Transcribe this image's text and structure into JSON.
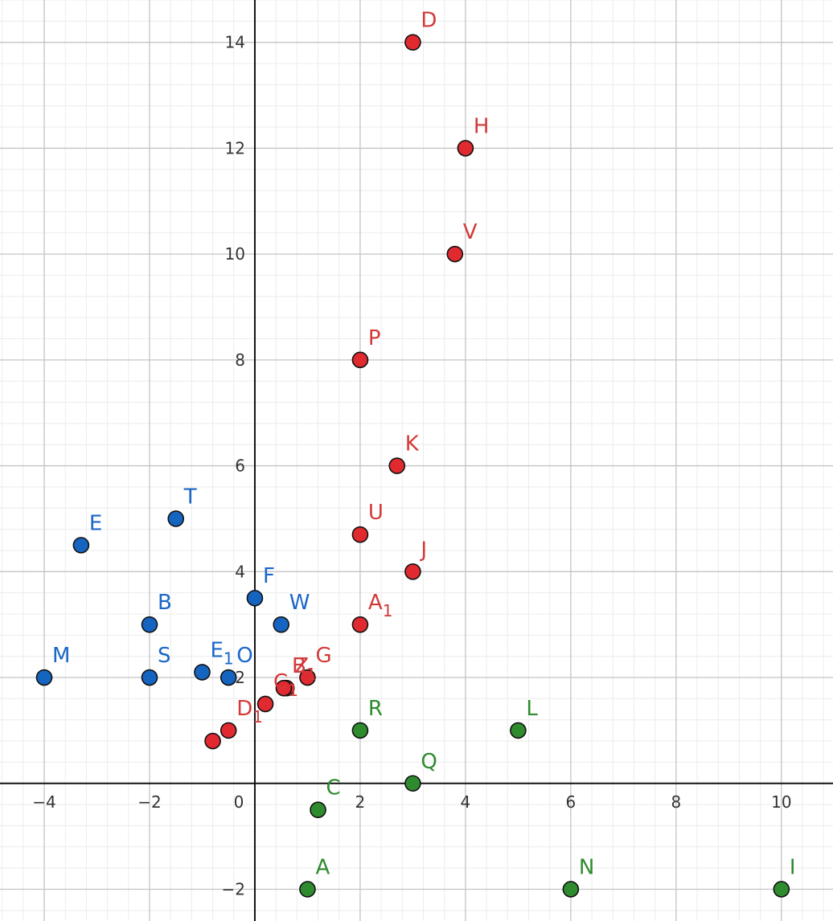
{
  "chart_data": {
    "type": "scatter",
    "title": "",
    "xlabel": "",
    "ylabel": "",
    "xlim": [
      -4.84,
      10.98
    ],
    "ylim": [
      -2.6,
      14.8
    ],
    "grid": true,
    "x_ticks": [
      -4,
      -2,
      0,
      2,
      4,
      6,
      8,
      10
    ],
    "x_tick_labels": [
      "−4",
      "−2",
      "0",
      "2",
      "4",
      "6",
      "8",
      "10"
    ],
    "y_ticks": [
      -2,
      2,
      4,
      6,
      8,
      10,
      12,
      14
    ],
    "y_tick_labels": [
      "−2",
      "2",
      "4",
      "6",
      "8",
      "10",
      "12",
      "14"
    ],
    "series": [
      {
        "name": "red",
        "color": "#e02a2f",
        "text_color": "#d23a3a",
        "points": [
          {
            "label": "D",
            "sub": "",
            "x": 3,
            "y": 14
          },
          {
            "label": "H",
            "sub": "",
            "x": 4,
            "y": 12
          },
          {
            "label": "V",
            "sub": "",
            "x": 3.8,
            "y": 10
          },
          {
            "label": "P",
            "sub": "",
            "x": 2,
            "y": 8
          },
          {
            "label": "K",
            "sub": "",
            "x": 2.7,
            "y": 6
          },
          {
            "label": "U",
            "sub": "",
            "x": 2,
            "y": 4.7
          },
          {
            "label": "J",
            "sub": "",
            "x": 3,
            "y": 4
          },
          {
            "label": "A",
            "sub": "1",
            "x": 2,
            "y": 3
          },
          {
            "label": "G",
            "sub": "",
            "x": 1,
            "y": 2
          },
          {
            "label": "Z",
            "sub": "",
            "x": 0.6,
            "y": 1.8
          },
          {
            "label": "B",
            "sub": "1",
            "x": 0.55,
            "y": 1.8
          },
          {
            "label": "C",
            "sub": "1",
            "x": 0.2,
            "y": 1.5
          },
          {
            "label": "D",
            "sub": "1",
            "x": -0.5,
            "y": 1
          },
          {
            "label": "",
            "sub": "",
            "x": -0.8,
            "y": 0.8
          }
        ]
      },
      {
        "name": "blue",
        "color": "#1565c0",
        "text_color": "#1a66c8",
        "points": [
          {
            "label": "T",
            "sub": "",
            "x": -1.5,
            "y": 5
          },
          {
            "label": "E",
            "sub": "",
            "x": -3.3,
            "y": 4.5
          },
          {
            "label": "F",
            "sub": "",
            "x": 0,
            "y": 3.5
          },
          {
            "label": "B",
            "sub": "",
            "x": -2,
            "y": 3
          },
          {
            "label": "W",
            "sub": "",
            "x": 0.5,
            "y": 3
          },
          {
            "label": "M",
            "sub": "",
            "x": -4,
            "y": 2
          },
          {
            "label": "S",
            "sub": "",
            "x": -2,
            "y": 2
          },
          {
            "label": "E",
            "sub": "1",
            "x": -1,
            "y": 2.1
          },
          {
            "label": "O",
            "sub": "",
            "x": -0.5,
            "y": 2
          }
        ]
      },
      {
        "name": "green",
        "color": "#2e8b2e",
        "text_color": "#2e8b2e",
        "points": [
          {
            "label": "R",
            "sub": "",
            "x": 2,
            "y": 1
          },
          {
            "label": "L",
            "sub": "",
            "x": 5,
            "y": 1
          },
          {
            "label": "Q",
            "sub": "",
            "x": 3,
            "y": 0
          },
          {
            "label": "C",
            "sub": "",
            "x": 1.2,
            "y": -0.5
          },
          {
            "label": "A",
            "sub": "",
            "x": 1,
            "y": -2
          },
          {
            "label": "N",
            "sub": "",
            "x": 6,
            "y": -2
          },
          {
            "label": "I",
            "sub": "",
            "x": 10,
            "y": -2
          }
        ]
      }
    ]
  }
}
